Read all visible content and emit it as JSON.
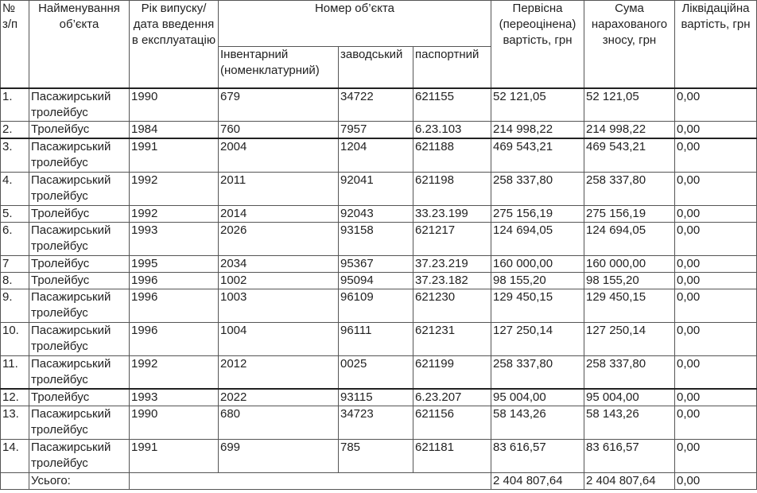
{
  "header": {
    "num": "№ з/п",
    "name": "Найменування об’єкта",
    "year": "Рік випуску/ дата введення в експлуатацію",
    "object_number": "Номер об’єкта",
    "inventory": "Інвентарний (номенклатурний)",
    "factory": "заводський",
    "passport": "паспортний",
    "initial_cost": "Первісна (переоцінена) вартість, грн",
    "depreciation": "Сума нарахованого зносу, грн",
    "liquidation": "Ліквідаційна вартість, грн"
  },
  "rows": [
    {
      "num": "1.",
      "name": "Пасажирський тролейбус",
      "year": "1990",
      "inv": "679",
      "factory": "34722",
      "passport": "621155",
      "initial": "52 121,05",
      "depr": "52 121,05",
      "liq": "0,00"
    },
    {
      "num": "2.",
      "name": "Тролейбус",
      "year": "1984",
      "inv": "760",
      "factory": "7957",
      "passport": "6.23.103",
      "initial": "214 998,22",
      "depr": "214 998,22",
      "liq": "0,00"
    },
    {
      "num": "3.",
      "name": "Пасажирський тролейбус",
      "year": "1991",
      "inv": "2004",
      "factory": "1204",
      "passport": "621188",
      "initial": "469 543,21",
      "depr": "469 543,21",
      "liq": "0,00"
    },
    {
      "num": "4.",
      "name": "Пасажирський тролейбус",
      "year": "1992",
      "inv": "2011",
      "factory": "92041",
      "passport": "621198",
      "initial": "258 337,80",
      "depr": "258 337,80",
      "liq": "0,00"
    },
    {
      "num": "5.",
      "name": "Тролейбус",
      "year": "1992",
      "inv": "2014",
      "factory": "92043",
      "passport": "33.23.199",
      "initial": "275 156,19",
      "depr": "275 156,19",
      "liq": "0,00"
    },
    {
      "num": "6.",
      "name": "Пасажирський тролейбус",
      "year": "1993",
      "inv": "2026",
      "factory": "93158",
      "passport": "621217",
      "initial": "124 694,05",
      "depr": "124 694,05",
      "liq": "0,00"
    },
    {
      "num": "7",
      "name": "Тролейбус",
      "year": "1995",
      "inv": "2034",
      "factory": "95367",
      "passport": "37.23.219",
      "initial": "160 000,00",
      "depr": "160 000,00",
      "liq": "0,00"
    },
    {
      "num": "8.",
      "name": "Тролейбус",
      "year": "1996",
      "inv": "1002",
      "factory": "95094",
      "passport": "37.23.182",
      "initial": "98 155,20",
      "depr": "98 155,20",
      "liq": "0,00"
    },
    {
      "num": "9.",
      "name": "Пасажирський тролейбус",
      "year": "1996",
      "inv": "1003",
      "factory": "96109",
      "passport": "621230",
      "initial": "129 450,15",
      "depr": "129 450,15",
      "liq": "0,00"
    },
    {
      "num": "10.",
      "name": "Пасажирський тролейбус",
      "year": "1996",
      "inv": "1004",
      "factory": "96111",
      "passport": "621231",
      "initial": "127 250,14",
      "depr": "127 250,14",
      "liq": "0,00"
    },
    {
      "num": "11.",
      "name": "Пасажирський тролейбус",
      "year": "1992",
      "inv": "2012",
      "factory": "0025",
      "passport": "621199",
      "initial": "258 337,80",
      "depr": "258 337,80",
      "liq": "0,00"
    },
    {
      "num": "12.",
      "name": "Тролейбус",
      "year": "1993",
      "inv": "2022",
      "factory": "93115",
      "passport": "6.23.207",
      "initial": "95 004,00",
      "depr": "95 004,00",
      "liq": "0,00"
    },
    {
      "num": "13.",
      "name": "Пасажирський тролейбус",
      "year": "1990",
      "inv": "680",
      "factory": "34723",
      "passport": "621156",
      "initial": "58 143,26",
      "depr": "58 143,26",
      "liq": "0,00"
    },
    {
      "num": "14.",
      "name": "Пасажирський тролейбус",
      "year": "1991",
      "inv": "699",
      "factory": "785",
      "passport": "621181",
      "initial": "83 616,57",
      "depr": "83 616,57",
      "liq": "0,00"
    }
  ],
  "total": {
    "label": "Усього:",
    "initial": "2 404 807,64",
    "depr": "2 404 807,64",
    "liq": "0,00"
  }
}
